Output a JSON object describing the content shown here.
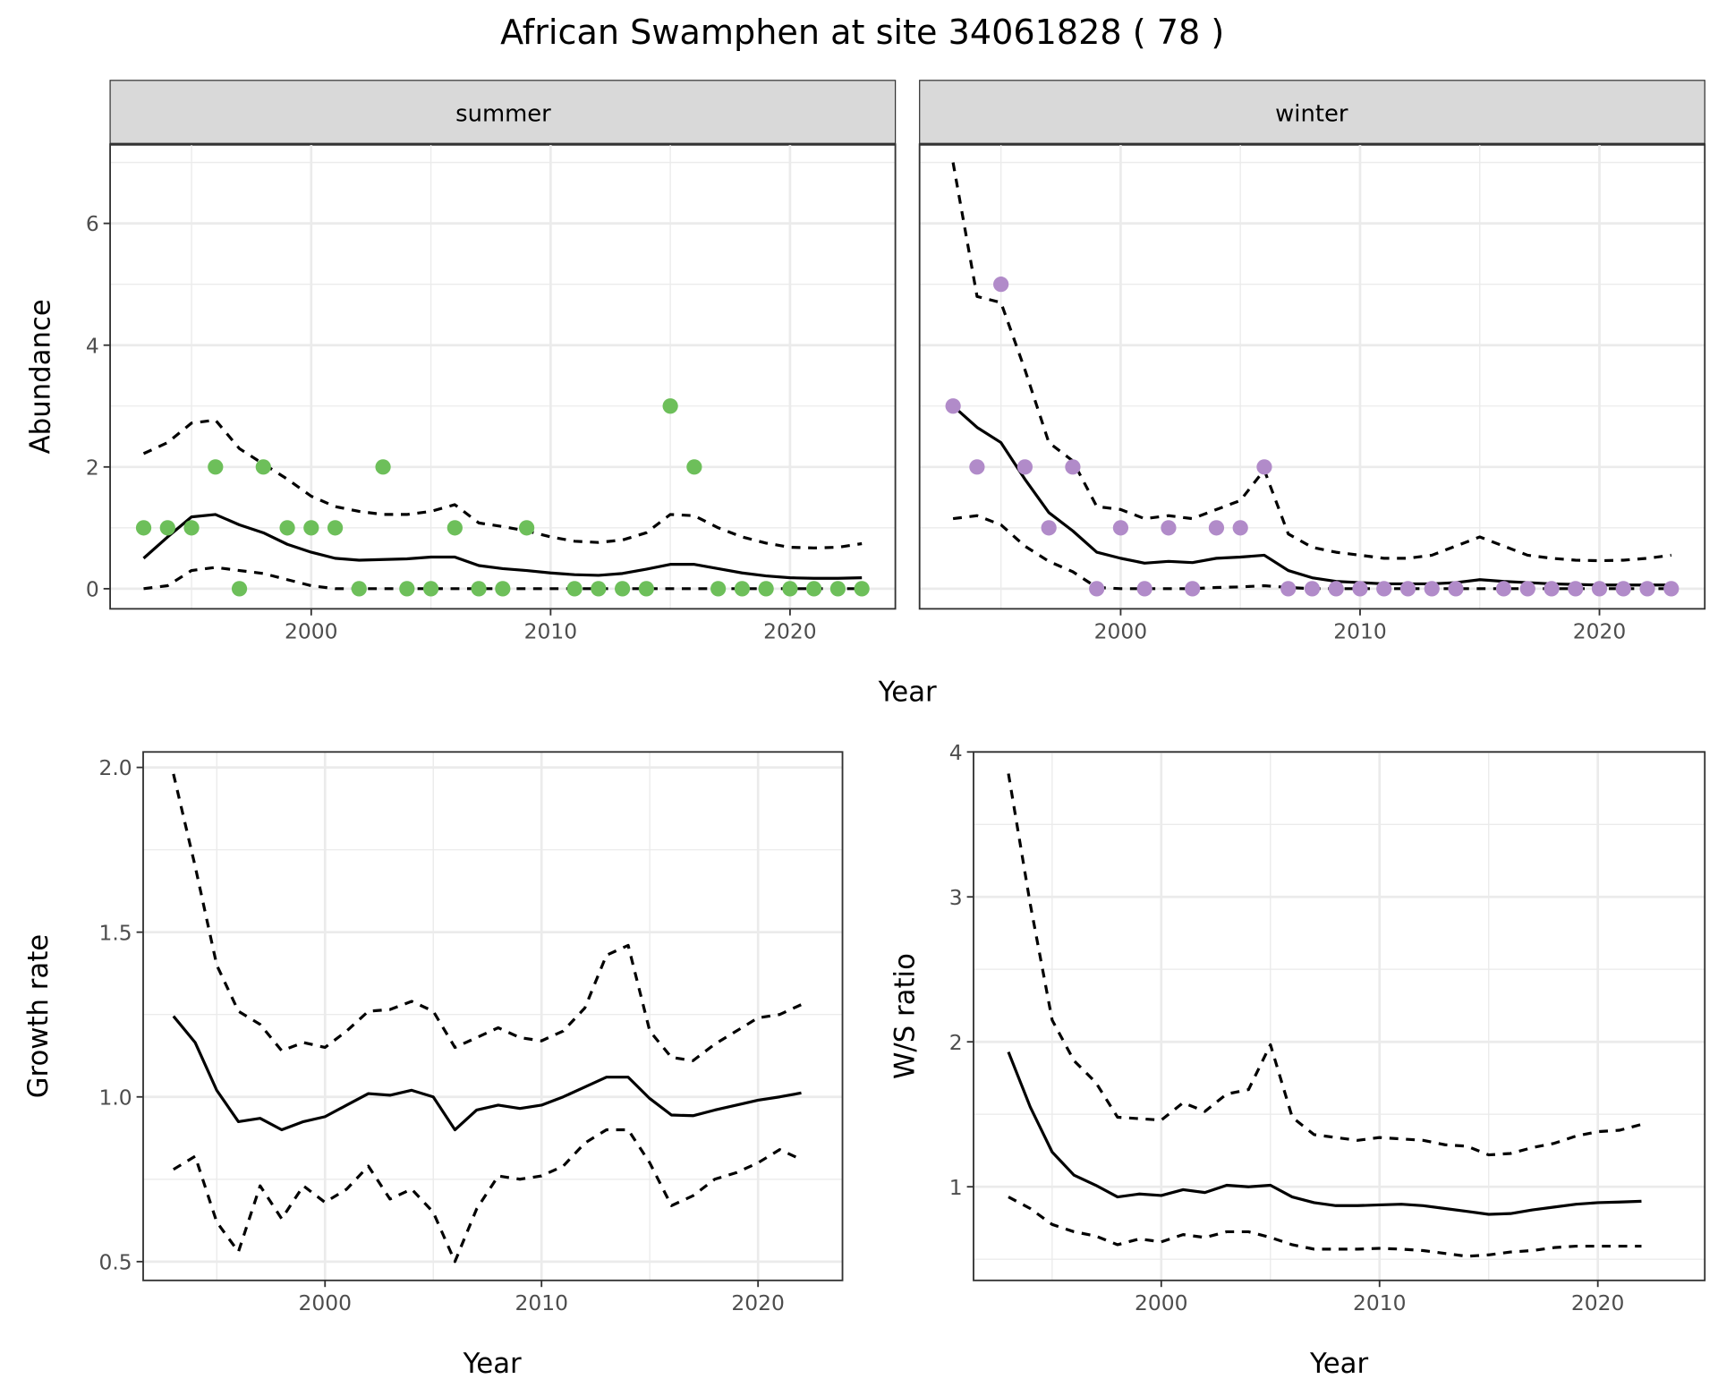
{
  "title": "African Swamphen at site 34061828 ( 78 )",
  "colors": {
    "summer_points": "#6dbf5a",
    "winter_points": "#b18bc9",
    "strip_fill": "#d9d9d9",
    "grid": "#ebebeb",
    "line": "#000000"
  },
  "chart_data": [
    {
      "type": "scatter+line",
      "facet": "summer",
      "xlabel": "Year",
      "ylabel": "Abundance",
      "xlim": [
        1991.6,
        2024.4
      ],
      "ylim": [
        -0.33,
        7.3
      ],
      "xticks": [
        2000,
        2010,
        2020
      ],
      "yticks": [
        0,
        2,
        4,
        6
      ],
      "grid": true,
      "points": {
        "x": [
          1993,
          1994,
          1995,
          1996,
          1997,
          1998,
          1999,
          2000,
          2001,
          2002,
          2003,
          2004,
          2005,
          2006,
          2007,
          2008,
          2009,
          2011,
          2012,
          2013,
          2014,
          2015,
          2016,
          2017,
          2018,
          2019,
          2020,
          2021,
          2022,
          2023
        ],
        "y": [
          1,
          1,
          1,
          2,
          0,
          2,
          1,
          1,
          1,
          0,
          2,
          0,
          0,
          1,
          0,
          0,
          1,
          0,
          0,
          0,
          0,
          3,
          2,
          0,
          0,
          0,
          0,
          0,
          0,
          0
        ]
      },
      "lines_x": [
        1993,
        1994,
        1995,
        1996,
        1997,
        1998,
        1999,
        2000,
        2001,
        2002,
        2003,
        2004,
        2005,
        2006,
        2007,
        2008,
        2009,
        2010,
        2011,
        2012,
        2013,
        2014,
        2015,
        2016,
        2017,
        2018,
        2019,
        2020,
        2021,
        2022,
        2023
      ],
      "mean": [
        0.5,
        0.85,
        1.18,
        1.22,
        1.05,
        0.92,
        0.73,
        0.6,
        0.5,
        0.47,
        0.48,
        0.49,
        0.52,
        0.52,
        0.38,
        0.33,
        0.3,
        0.26,
        0.23,
        0.22,
        0.25,
        0.32,
        0.4,
        0.4,
        0.33,
        0.26,
        0.21,
        0.18,
        0.17,
        0.17,
        0.18
      ],
      "upper": [
        2.22,
        2.4,
        2.72,
        2.77,
        2.3,
        2.05,
        1.8,
        1.52,
        1.35,
        1.27,
        1.22,
        1.22,
        1.27,
        1.38,
        1.08,
        1.02,
        0.95,
        0.85,
        0.78,
        0.76,
        0.8,
        0.92,
        1.22,
        1.2,
        1.0,
        0.85,
        0.75,
        0.68,
        0.67,
        0.68,
        0.74
      ],
      "lower": [
        0,
        0.05,
        0.3,
        0.35,
        0.3,
        0.25,
        0.15,
        0.05,
        0,
        0,
        0,
        0,
        0,
        0,
        0,
        0,
        0,
        0,
        0,
        0,
        0,
        0,
        0,
        0,
        0,
        0,
        0,
        0,
        0,
        0,
        0
      ]
    },
    {
      "type": "scatter+line",
      "facet": "winter",
      "xlabel": "Year",
      "ylabel": "Abundance",
      "xlim": [
        1991.6,
        2024.4
      ],
      "ylim": [
        -0.33,
        7.3
      ],
      "xticks": [
        2000,
        2010,
        2020
      ],
      "yticks": [
        0,
        2,
        4,
        6
      ],
      "grid": true,
      "points": {
        "x": [
          1993,
          1994,
          1995,
          1996,
          1997,
          1998,
          1999,
          2000,
          2001,
          2002,
          2003,
          2004,
          2005,
          2006,
          2007,
          2008,
          2009,
          2010,
          2011,
          2012,
          2013,
          2014,
          2016,
          2017,
          2018,
          2019,
          2020,
          2021,
          2022,
          2023
        ],
        "y": [
          3,
          2,
          5,
          2,
          1,
          2,
          0,
          1,
          0,
          1,
          0,
          1,
          1,
          2,
          0,
          0,
          0,
          0,
          0,
          0,
          0,
          0,
          0,
          0,
          0,
          0,
          0,
          0,
          0,
          0
        ]
      },
      "lines_x": [
        1993,
        1994,
        1995,
        1996,
        1997,
        1998,
        1999,
        2000,
        2001,
        2002,
        2003,
        2004,
        2005,
        2006,
        2007,
        2008,
        2009,
        2010,
        2011,
        2012,
        2013,
        2014,
        2015,
        2016,
        2017,
        2018,
        2019,
        2020,
        2021,
        2022,
        2023
      ],
      "mean": [
        3.0,
        2.65,
        2.4,
        1.8,
        1.25,
        0.95,
        0.6,
        0.5,
        0.42,
        0.45,
        0.43,
        0.5,
        0.52,
        0.55,
        0.3,
        0.18,
        0.12,
        0.1,
        0.08,
        0.08,
        0.08,
        0.1,
        0.15,
        0.12,
        0.1,
        0.08,
        0.07,
        0.06,
        0.06,
        0.06,
        0.06
      ],
      "upper": [
        7.0,
        4.8,
        4.7,
        3.6,
        2.4,
        2.1,
        1.35,
        1.3,
        1.15,
        1.2,
        1.15,
        1.3,
        1.45,
        1.95,
        0.9,
        0.68,
        0.6,
        0.55,
        0.5,
        0.5,
        0.55,
        0.7,
        0.85,
        0.7,
        0.55,
        0.5,
        0.47,
        0.46,
        0.47,
        0.5,
        0.55
      ],
      "lower": [
        1.15,
        1.2,
        1.05,
        0.7,
        0.45,
        0.28,
        0.02,
        0,
        0,
        0,
        0,
        0.02,
        0.03,
        0.05,
        0.02,
        0,
        0,
        0,
        0,
        0,
        0,
        0,
        0,
        0,
        0,
        0,
        0,
        0,
        0,
        0,
        0
      ]
    },
    {
      "type": "line",
      "xlabel": "Year",
      "ylabel": "Growth rate",
      "xlim": [
        1991.6,
        2023.9
      ],
      "ylim": [
        0.443,
        2.047
      ],
      "xticks": [
        2000,
        2010,
        2020
      ],
      "yticks": [
        0.5,
        1.0,
        1.5,
        2.0
      ],
      "ytick_labels": [
        "0.5",
        "1.0",
        "1.5",
        "2.0"
      ],
      "grid": true,
      "lines_x": [
        1993,
        1994,
        1995,
        1996,
        1997,
        1998,
        1999,
        2000,
        2001,
        2002,
        2003,
        2004,
        2005,
        2006,
        2007,
        2008,
        2009,
        2010,
        2011,
        2012,
        2013,
        2014,
        2015,
        2016,
        2017,
        2018,
        2019,
        2020,
        2021,
        2022
      ],
      "mean": [
        1.245,
        1.165,
        1.02,
        0.925,
        0.935,
        0.9,
        0.925,
        0.94,
        0.975,
        1.01,
        1.005,
        1.02,
        1.0,
        0.9,
        0.96,
        0.975,
        0.965,
        0.975,
        1.0,
        1.03,
        1.06,
        1.06,
        0.995,
        0.945,
        0.943,
        0.96,
        0.975,
        0.99,
        1.0,
        1.012
      ],
      "upper": [
        1.98,
        1.7,
        1.4,
        1.26,
        1.22,
        1.14,
        1.165,
        1.15,
        1.2,
        1.26,
        1.265,
        1.29,
        1.26,
        1.15,
        1.18,
        1.21,
        1.18,
        1.17,
        1.2,
        1.27,
        1.43,
        1.46,
        1.2,
        1.12,
        1.11,
        1.16,
        1.2,
        1.24,
        1.25,
        1.28
      ],
      "lower": [
        0.78,
        0.82,
        0.62,
        0.53,
        0.73,
        0.63,
        0.73,
        0.68,
        0.72,
        0.79,
        0.69,
        0.72,
        0.65,
        0.5,
        0.66,
        0.76,
        0.75,
        0.76,
        0.79,
        0.86,
        0.9,
        0.9,
        0.8,
        0.67,
        0.7,
        0.75,
        0.77,
        0.8,
        0.84,
        0.81
      ]
    },
    {
      "type": "line",
      "xlabel": "Year",
      "ylabel": "W/S ratio",
      "xlim": [
        1991.4,
        2024.9
      ],
      "ylim": [
        0.354,
        4.0
      ],
      "xticks": [
        2000,
        2010,
        2020
      ],
      "yticks": [
        1,
        2,
        3,
        4
      ],
      "ytick_labels": [
        "1",
        "2",
        "3",
        "4"
      ],
      "grid": true,
      "lines_x": [
        1993,
        1994,
        1995,
        1996,
        1997,
        1998,
        1999,
        2000,
        2001,
        2002,
        2003,
        2004,
        2005,
        2006,
        2007,
        2008,
        2009,
        2010,
        2011,
        2012,
        2013,
        2014,
        2015,
        2016,
        2017,
        2018,
        2019,
        2020,
        2021,
        2022
      ],
      "mean": [
        1.93,
        1.55,
        1.24,
        1.08,
        1.01,
        0.93,
        0.95,
        0.94,
        0.98,
        0.96,
        1.01,
        1.0,
        1.01,
        0.93,
        0.89,
        0.87,
        0.87,
        0.875,
        0.88,
        0.87,
        0.85,
        0.83,
        0.81,
        0.815,
        0.84,
        0.86,
        0.88,
        0.89,
        0.895,
        0.9
      ],
      "upper": [
        3.85,
        2.95,
        2.15,
        1.87,
        1.72,
        1.48,
        1.47,
        1.46,
        1.58,
        1.52,
        1.64,
        1.67,
        1.98,
        1.48,
        1.36,
        1.34,
        1.32,
        1.34,
        1.33,
        1.32,
        1.29,
        1.28,
        1.22,
        1.23,
        1.27,
        1.3,
        1.35,
        1.38,
        1.39,
        1.43
      ],
      "lower": [
        0.93,
        0.85,
        0.74,
        0.69,
        0.66,
        0.6,
        0.64,
        0.62,
        0.67,
        0.65,
        0.69,
        0.69,
        0.65,
        0.6,
        0.57,
        0.57,
        0.57,
        0.575,
        0.57,
        0.56,
        0.54,
        0.52,
        0.53,
        0.55,
        0.56,
        0.58,
        0.59,
        0.59,
        0.59,
        0.59
      ]
    }
  ]
}
